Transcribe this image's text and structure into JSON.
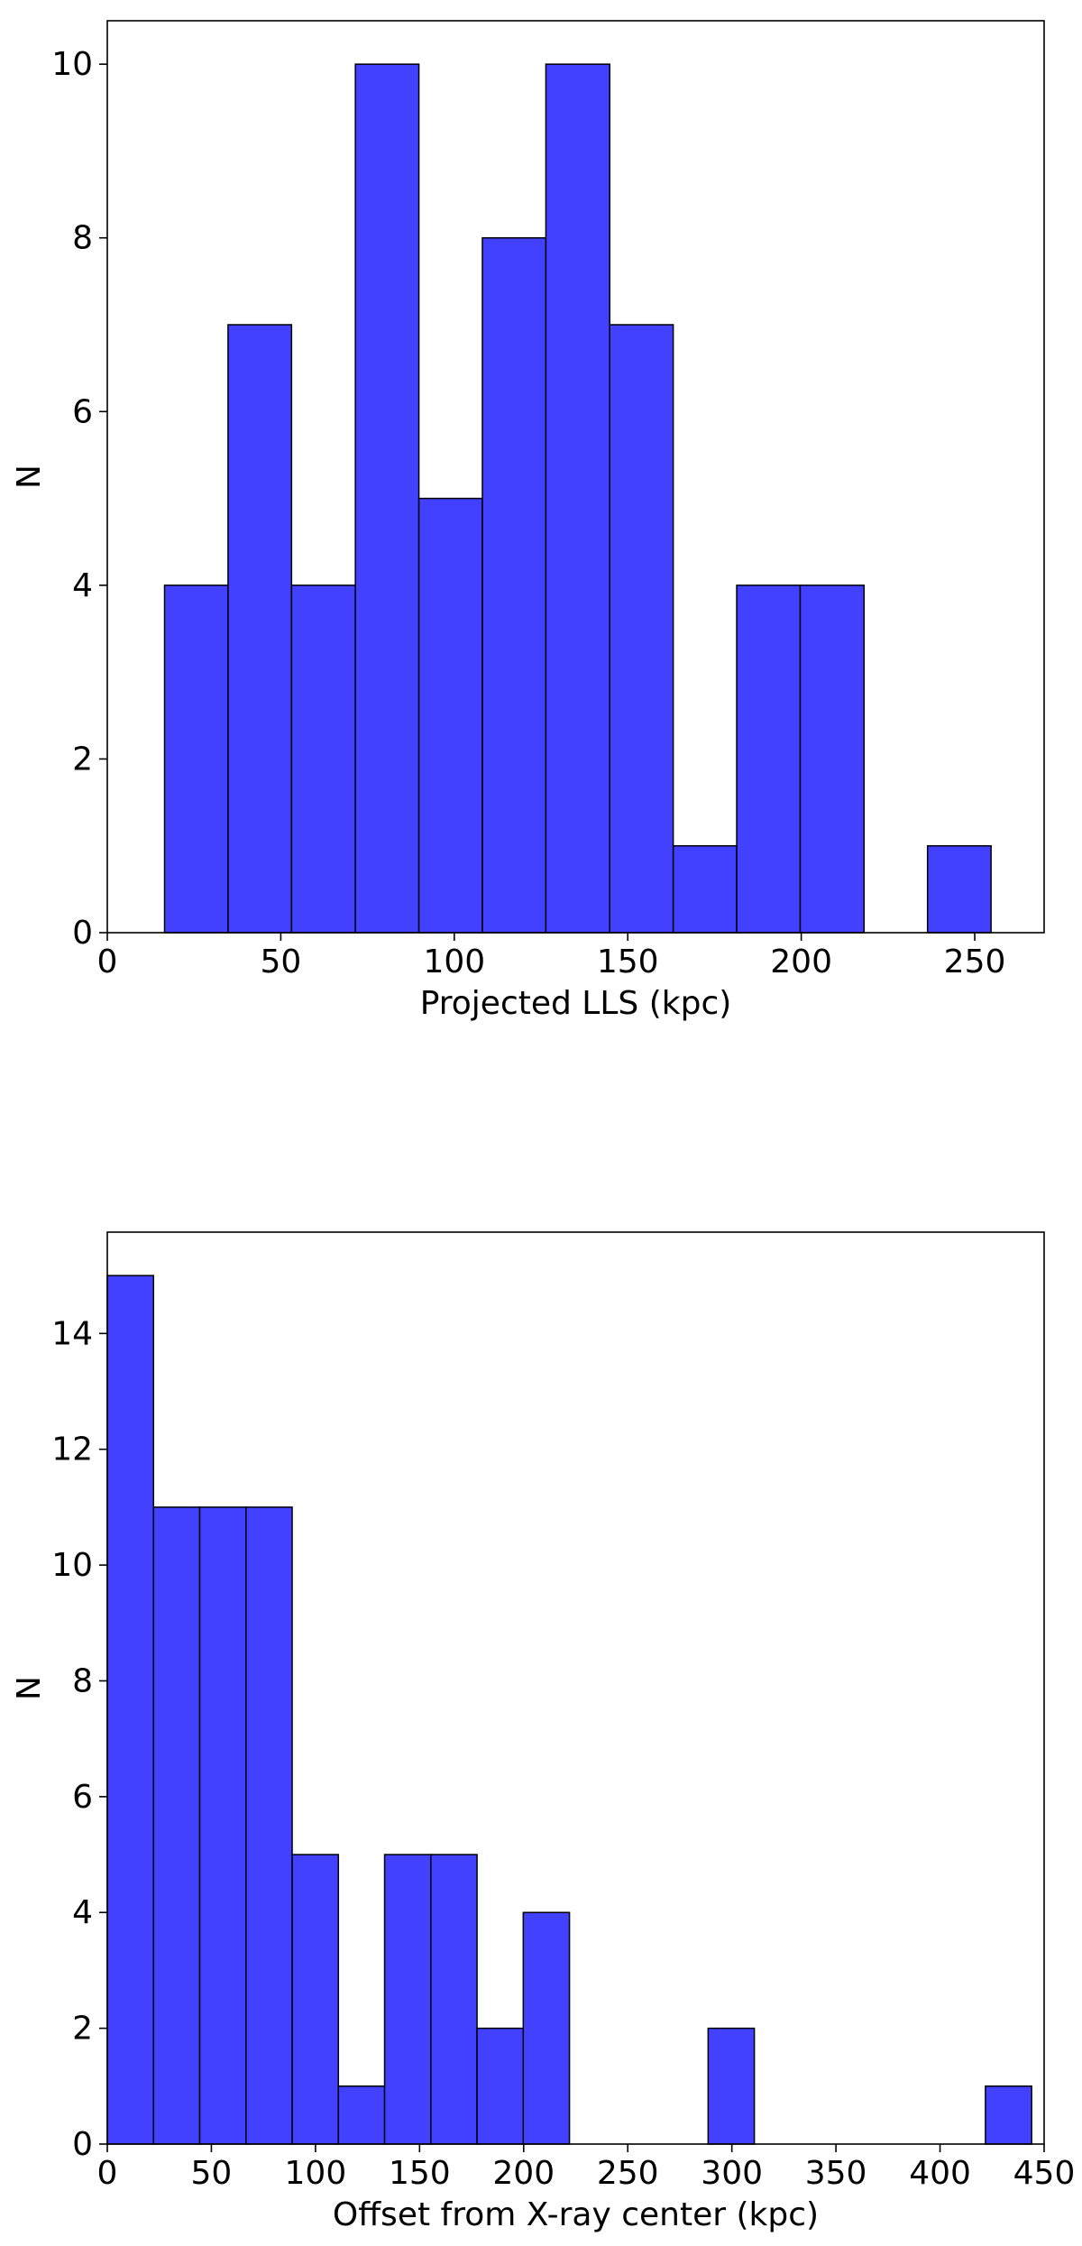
{
  "chart_data": [
    {
      "type": "bar",
      "xlabel": "Projected LLS (kpc)",
      "ylabel": "N",
      "xlim": [
        0,
        270
      ],
      "ylim": [
        0,
        10.5
      ],
      "xticks": [
        0,
        50,
        100,
        150,
        200,
        250
      ],
      "yticks": [
        0,
        2,
        4,
        6,
        8,
        10
      ],
      "bar_color": "#4141ff",
      "edge_color": "#000000",
      "bins": [
        {
          "x0": 16.5,
          "x1": 34.8,
          "value": 4
        },
        {
          "x0": 34.8,
          "x1": 53.1,
          "value": 7
        },
        {
          "x0": 53.1,
          "x1": 71.5,
          "value": 4
        },
        {
          "x0": 71.5,
          "x1": 89.8,
          "value": 10
        },
        {
          "x0": 89.8,
          "x1": 108.1,
          "value": 5
        },
        {
          "x0": 108.1,
          "x1": 126.4,
          "value": 8
        },
        {
          "x0": 126.4,
          "x1": 144.8,
          "value": 10
        },
        {
          "x0": 144.8,
          "x1": 163.1,
          "value": 7
        },
        {
          "x0": 163.1,
          "x1": 181.4,
          "value": 1
        },
        {
          "x0": 181.4,
          "x1": 199.7,
          "value": 4
        },
        {
          "x0": 199.7,
          "x1": 218.1,
          "value": 4
        },
        {
          "x0": 218.1,
          "x1": 236.4,
          "value": 0
        },
        {
          "x0": 236.4,
          "x1": 254.7,
          "value": 1
        }
      ]
    },
    {
      "type": "bar",
      "xlabel": "Offset from X-ray center (kpc)",
      "ylabel": "N",
      "xlim": [
        0,
        450
      ],
      "ylim": [
        0,
        15.75
      ],
      "xticks": [
        0,
        50,
        100,
        150,
        200,
        250,
        300,
        350,
        400,
        450
      ],
      "yticks": [
        0,
        2,
        4,
        6,
        8,
        10,
        12,
        14
      ],
      "bar_color": "#4141ff",
      "edge_color": "#000000",
      "bins": [
        {
          "x0": 0,
          "x1": 22.2,
          "value": 15
        },
        {
          "x0": 22.2,
          "x1": 44.4,
          "value": 11
        },
        {
          "x0": 44.4,
          "x1": 66.6,
          "value": 11
        },
        {
          "x0": 66.6,
          "x1": 88.8,
          "value": 11
        },
        {
          "x0": 88.8,
          "x1": 111.0,
          "value": 5
        },
        {
          "x0": 111.0,
          "x1": 133.2,
          "value": 1
        },
        {
          "x0": 133.2,
          "x1": 155.4,
          "value": 5
        },
        {
          "x0": 155.4,
          "x1": 177.6,
          "value": 5
        },
        {
          "x0": 177.6,
          "x1": 199.8,
          "value": 2
        },
        {
          "x0": 199.8,
          "x1": 222.0,
          "value": 4
        },
        {
          "x0": 222.0,
          "x1": 244.2,
          "value": 0
        },
        {
          "x0": 244.2,
          "x1": 266.4,
          "value": 0
        },
        {
          "x0": 266.4,
          "x1": 288.6,
          "value": 0
        },
        {
          "x0": 288.6,
          "x1": 310.8,
          "value": 2
        },
        {
          "x0": 310.8,
          "x1": 333.0,
          "value": 0
        },
        {
          "x0": 333.0,
          "x1": 355.2,
          "value": 0
        },
        {
          "x0": 355.2,
          "x1": 377.4,
          "value": 0
        },
        {
          "x0": 377.4,
          "x1": 399.6,
          "value": 0
        },
        {
          "x0": 399.6,
          "x1": 421.8,
          "value": 0
        },
        {
          "x0": 421.8,
          "x1": 444.0,
          "value": 1
        }
      ]
    }
  ]
}
